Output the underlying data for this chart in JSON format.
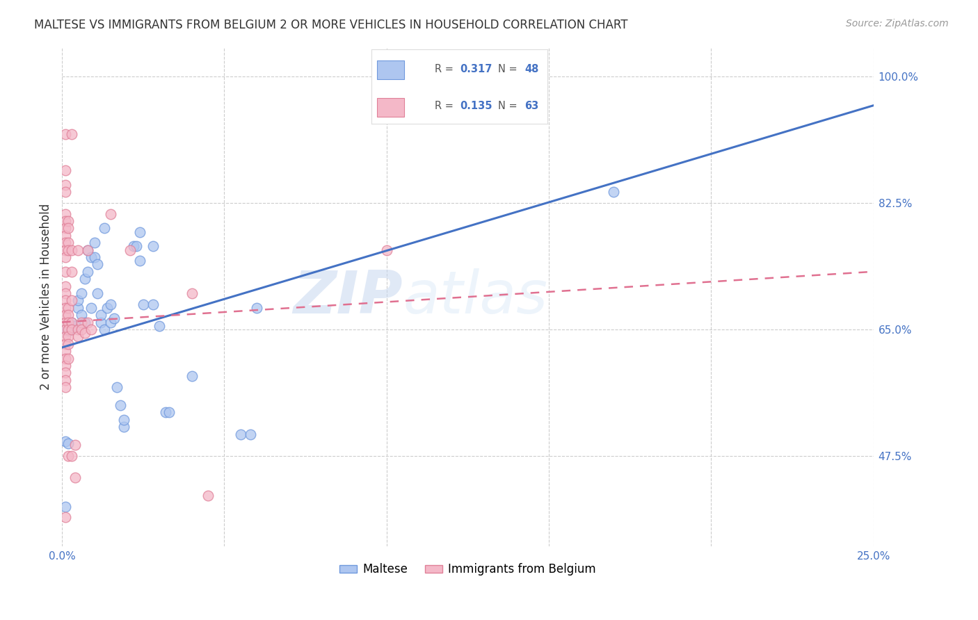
{
  "title": "MALTESE VS IMMIGRANTS FROM BELGIUM 2 OR MORE VEHICLES IN HOUSEHOLD CORRELATION CHART",
  "source": "Source: ZipAtlas.com",
  "ylabel": "2 or more Vehicles in Household",
  "x_min": 0.0,
  "x_max": 0.25,
  "y_min": 0.35,
  "y_max": 1.04,
  "x_ticks": [
    0.0,
    0.05,
    0.1,
    0.15,
    0.2,
    0.25
  ],
  "x_tick_labels": [
    "0.0%",
    "",
    "",
    "",
    "",
    "25.0%"
  ],
  "y_ticks": [
    0.475,
    0.65,
    0.825,
    1.0
  ],
  "y_tick_labels": [
    "47.5%",
    "65.0%",
    "82.5%",
    "100.0%"
  ],
  "legend1_color": "#aec6f0",
  "legend2_color": "#f4b8c8",
  "line1_color": "#4472c4",
  "line2_color": "#e07090",
  "watermark_zip": "ZIP",
  "watermark_atlas": "atlas",
  "scatter_blue": [
    [
      0.001,
      0.65
    ],
    [
      0.002,
      0.648
    ],
    [
      0.003,
      0.66
    ],
    [
      0.004,
      0.655
    ],
    [
      0.005,
      0.68
    ],
    [
      0.005,
      0.69
    ],
    [
      0.006,
      0.7
    ],
    [
      0.006,
      0.67
    ],
    [
      0.007,
      0.72
    ],
    [
      0.007,
      0.66
    ],
    [
      0.008,
      0.73
    ],
    [
      0.008,
      0.76
    ],
    [
      0.009,
      0.75
    ],
    [
      0.009,
      0.68
    ],
    [
      0.01,
      0.77
    ],
    [
      0.01,
      0.75
    ],
    [
      0.011,
      0.7
    ],
    [
      0.011,
      0.74
    ],
    [
      0.012,
      0.66
    ],
    [
      0.012,
      0.67
    ],
    [
      0.013,
      0.79
    ],
    [
      0.013,
      0.65
    ],
    [
      0.014,
      0.68
    ],
    [
      0.015,
      0.66
    ],
    [
      0.015,
      0.685
    ],
    [
      0.016,
      0.665
    ],
    [
      0.017,
      0.57
    ],
    [
      0.018,
      0.545
    ],
    [
      0.019,
      0.515
    ],
    [
      0.019,
      0.525
    ],
    [
      0.022,
      0.765
    ],
    [
      0.023,
      0.765
    ],
    [
      0.024,
      0.745
    ],
    [
      0.024,
      0.785
    ],
    [
      0.025,
      0.685
    ],
    [
      0.028,
      0.765
    ],
    [
      0.028,
      0.685
    ],
    [
      0.03,
      0.655
    ],
    [
      0.032,
      0.535
    ],
    [
      0.033,
      0.535
    ],
    [
      0.04,
      0.585
    ],
    [
      0.055,
      0.505
    ],
    [
      0.058,
      0.505
    ],
    [
      0.001,
      0.495
    ],
    [
      0.001,
      0.405
    ],
    [
      0.17,
      0.84
    ],
    [
      0.06,
      0.68
    ],
    [
      0.002,
      0.492
    ]
  ],
  "scatter_pink": [
    [
      0.001,
      0.92
    ],
    [
      0.001,
      0.87
    ],
    [
      0.001,
      0.85
    ],
    [
      0.001,
      0.84
    ],
    [
      0.001,
      0.81
    ],
    [
      0.001,
      0.8
    ],
    [
      0.001,
      0.79
    ],
    [
      0.001,
      0.78
    ],
    [
      0.001,
      0.77
    ],
    [
      0.001,
      0.76
    ],
    [
      0.001,
      0.75
    ],
    [
      0.001,
      0.73
    ],
    [
      0.001,
      0.71
    ],
    [
      0.001,
      0.7
    ],
    [
      0.001,
      0.69
    ],
    [
      0.001,
      0.68
    ],
    [
      0.001,
      0.67
    ],
    [
      0.001,
      0.66
    ],
    [
      0.001,
      0.65
    ],
    [
      0.001,
      0.64
    ],
    [
      0.001,
      0.63
    ],
    [
      0.001,
      0.62
    ],
    [
      0.001,
      0.61
    ],
    [
      0.001,
      0.6
    ],
    [
      0.001,
      0.59
    ],
    [
      0.001,
      0.58
    ],
    [
      0.001,
      0.57
    ],
    [
      0.001,
      0.39
    ],
    [
      0.002,
      0.8
    ],
    [
      0.002,
      0.79
    ],
    [
      0.002,
      0.77
    ],
    [
      0.002,
      0.76
    ],
    [
      0.002,
      0.68
    ],
    [
      0.002,
      0.67
    ],
    [
      0.002,
      0.66
    ],
    [
      0.002,
      0.65
    ],
    [
      0.002,
      0.64
    ],
    [
      0.002,
      0.63
    ],
    [
      0.002,
      0.61
    ],
    [
      0.002,
      0.475
    ],
    [
      0.003,
      0.92
    ],
    [
      0.003,
      0.76
    ],
    [
      0.003,
      0.73
    ],
    [
      0.003,
      0.69
    ],
    [
      0.003,
      0.66
    ],
    [
      0.003,
      0.65
    ],
    [
      0.003,
      0.475
    ],
    [
      0.004,
      0.49
    ],
    [
      0.004,
      0.445
    ],
    [
      0.005,
      0.76
    ],
    [
      0.005,
      0.65
    ],
    [
      0.005,
      0.64
    ],
    [
      0.006,
      0.66
    ],
    [
      0.006,
      0.65
    ],
    [
      0.007,
      0.645
    ],
    [
      0.008,
      0.66
    ],
    [
      0.008,
      0.76
    ],
    [
      0.009,
      0.65
    ],
    [
      0.015,
      0.81
    ],
    [
      0.021,
      0.76
    ],
    [
      0.04,
      0.7
    ],
    [
      0.045,
      0.42
    ],
    [
      0.1,
      0.76
    ]
  ],
  "line_blue_x0": 0.0,
  "line_blue_y0": 0.625,
  "line_blue_x1": 0.25,
  "line_blue_y1": 0.96,
  "line_pink_x0": 0.0,
  "line_pink_y0": 0.66,
  "line_pink_x1": 0.25,
  "line_pink_y1": 0.73,
  "figsize": [
    14.06,
    8.92
  ],
  "dpi": 100
}
